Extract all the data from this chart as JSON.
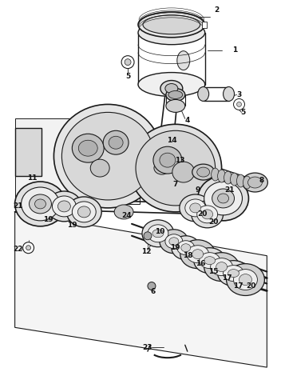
{
  "bg_color": "#ffffff",
  "line_color": "#1a1a1a",
  "label_color": "#111111",
  "fig_width": 3.52,
  "fig_height": 4.75,
  "dpi": 100
}
